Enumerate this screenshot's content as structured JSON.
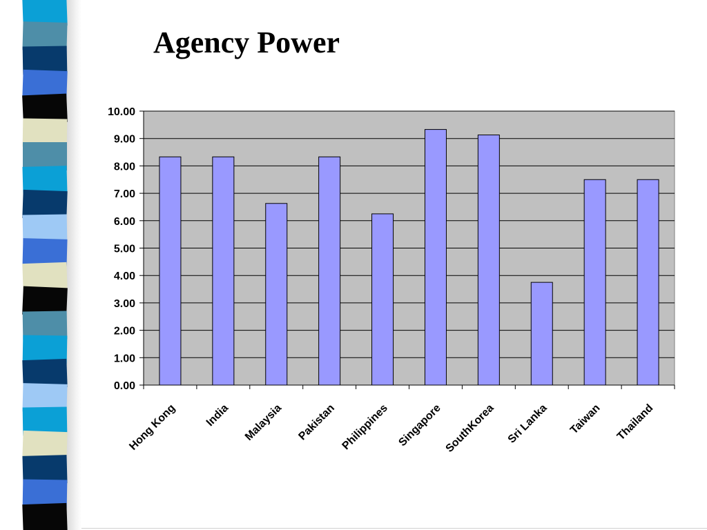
{
  "slide": {
    "title": "Agency Power"
  },
  "stripe_colors": [
    "#0ba0d6",
    "#4e8ea8",
    "#073a6c",
    "#3a6fd6",
    "#060606",
    "#e1e1c0",
    "#4e8ea8",
    "#0ba0d6",
    "#073a6c",
    "#9ec9f5",
    "#3a6fd6",
    "#e1e1c0",
    "#060606",
    "#4e8ea8",
    "#0ba0d6",
    "#073a6c",
    "#9ec9f5",
    "#0ba0d6",
    "#e1e1c0",
    "#073a6c",
    "#3a6fd6",
    "#060606"
  ],
  "chart_data": {
    "type": "bar",
    "title": "",
    "xlabel": "",
    "ylabel": "",
    "categories": [
      "Hong Kong",
      "India",
      "Malaysia",
      "Pakistan",
      "Philippines",
      "Singapore",
      "SouthKorea",
      "Sri Lanka",
      "Taiwan",
      "Thailand"
    ],
    "values": [
      8.33,
      8.33,
      6.63,
      8.33,
      6.25,
      9.33,
      9.13,
      3.75,
      7.5,
      7.5
    ],
    "ylim": [
      0,
      10
    ],
    "yticks": [
      "0.00",
      "1.00",
      "2.00",
      "3.00",
      "4.00",
      "5.00",
      "6.00",
      "7.00",
      "8.00",
      "9.00",
      "10.00"
    ],
    "grid": true,
    "legend": "none",
    "colors": {
      "bar_fill": "#9999ff",
      "bar_stroke": "#000000",
      "plot_background": "#c0c0c0",
      "gridline": "#000000"
    }
  }
}
